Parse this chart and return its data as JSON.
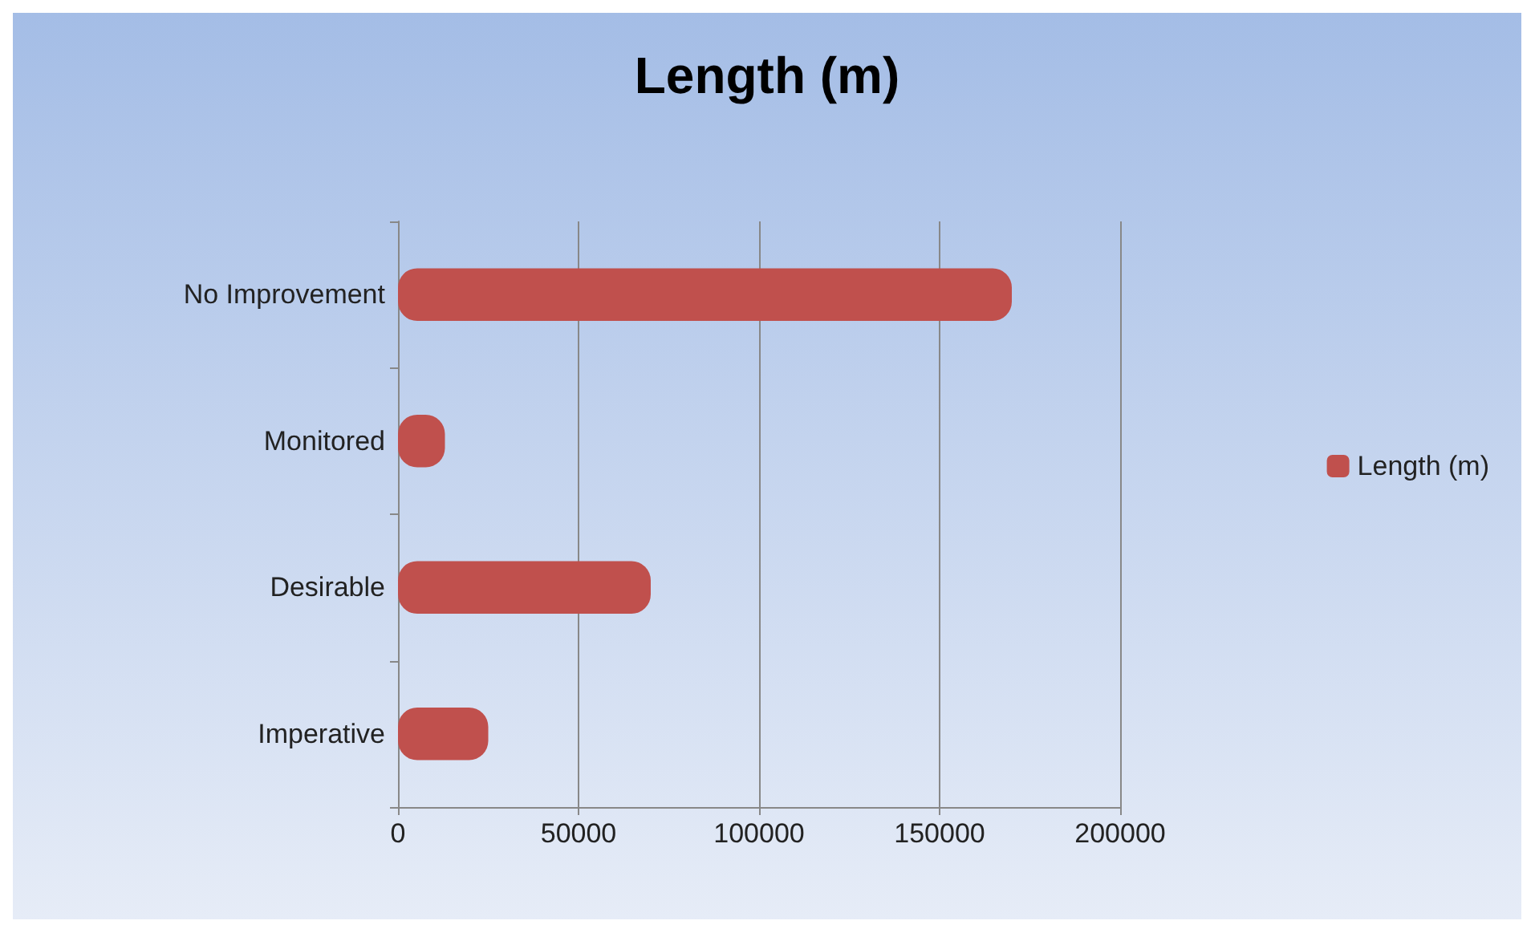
{
  "chart_data": {
    "type": "bar",
    "orientation": "horizontal",
    "title": "Length (m)",
    "categories": [
      "No Improvement",
      "Monitored",
      "Desirable",
      "Imperative"
    ],
    "series": [
      {
        "name": "Length (m)",
        "color": "#c0504d",
        "values": [
          170000,
          13000,
          70000,
          25000
        ]
      }
    ],
    "xlim": [
      0,
      200000
    ],
    "xticks": [
      0,
      50000,
      100000,
      150000,
      200000
    ],
    "grid": "x",
    "legend": "right"
  }
}
